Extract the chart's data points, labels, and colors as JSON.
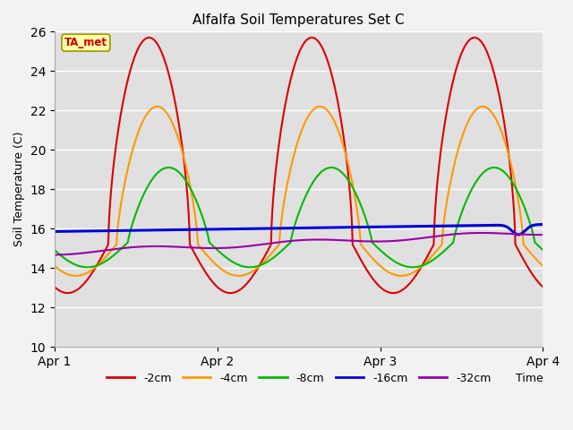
{
  "title": "Alfalfa Soil Temperatures Set C",
  "xlabel": "Time",
  "ylabel": "Soil Temperature (C)",
  "ylim": [
    10,
    26
  ],
  "xlim": [
    0,
    3.0
  ],
  "xtick_positions": [
    0,
    1,
    2,
    3
  ],
  "xtick_labels": [
    "Apr 1",
    "Apr 2",
    "Apr 3",
    "Apr 4"
  ],
  "ytick_positions": [
    10,
    12,
    14,
    16,
    18,
    20,
    22,
    24,
    26
  ],
  "bg_color": "#e0e0e0",
  "fig_bg": "#f2f2f2",
  "annotation_text": "TA_met",
  "annotation_color": "#cc0000",
  "annotation_bg": "#ffffaa",
  "series": {
    "-2cm": {
      "color": "#dd0000",
      "linewidth": 1.5
    },
    "-4cm": {
      "color": "#ff9900",
      "linewidth": 1.5
    },
    "-8cm": {
      "color": "#00bb00",
      "linewidth": 1.5
    },
    "-16cm": {
      "color": "#0000dd",
      "linewidth": 2.2
    },
    "-32cm": {
      "color": "#9900aa",
      "linewidth": 1.5
    }
  },
  "legend_entries": [
    "-2cm",
    "-4cm",
    "-8cm",
    "-16cm",
    "-32cm"
  ],
  "legend_colors": [
    "#dd0000",
    "#ff9900",
    "#00bb00",
    "#0000dd",
    "#9900aa"
  ]
}
